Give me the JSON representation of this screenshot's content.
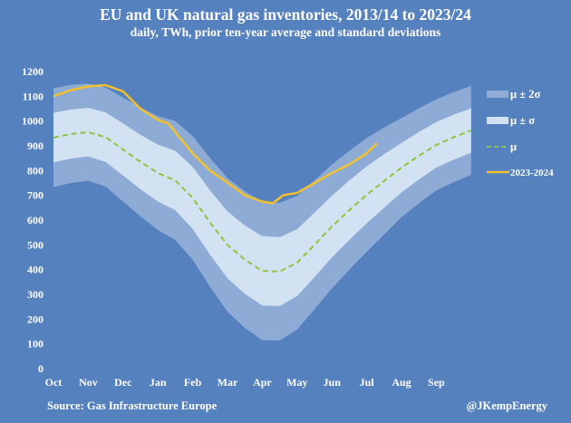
{
  "chart_data": {
    "type": "area",
    "title": "EU and UK natural gas inventories, 2013/14 to 2023/24",
    "subtitle": "daily, TWh, prior ten-year average and standard deviations",
    "xlabel": "",
    "ylabel": "",
    "ylim": [
      0,
      1200
    ],
    "yticks": [
      0,
      100,
      200,
      300,
      400,
      500,
      600,
      700,
      800,
      900,
      1000,
      1100,
      1200
    ],
    "xticks": [
      "Oct",
      "Nov",
      "Dec",
      "Jan",
      "Feb",
      "Mar",
      "Apr",
      "May",
      "Jun",
      "Jul",
      "Aug",
      "Sep"
    ],
    "grid": false,
    "legend_position": "right",
    "x_unit": "months since Oct 1",
    "avg_x": [
      0,
      0.5,
      1,
      1.5,
      2,
      2.5,
      3,
      3.5,
      4,
      4.5,
      5,
      5.5,
      6,
      6.5,
      7,
      7.5,
      8,
      8.5,
      9,
      9.5,
      10,
      10.5,
      11,
      11.5,
      12
    ],
    "mean": [
      933,
      948,
      955,
      935,
      885,
      835,
      790,
      760,
      690,
      590,
      500,
      440,
      395,
      392,
      428,
      500,
      574,
      640,
      702,
      758,
      812,
      860,
      904,
      935,
      962
    ],
    "sigma": [
      100,
      99,
      98,
      100,
      105,
      110,
      115,
      120,
      125,
      130,
      135,
      138,
      140,
      139,
      135,
      130,
      125,
      120,
      115,
      108,
      100,
      96,
      92,
      91,
      90
    ],
    "series": [
      {
        "name": "μ ± 2σ",
        "color": "#8eabd5"
      },
      {
        "name": "μ ± σ",
        "color": "#d2e2f3"
      },
      {
        "name": "μ",
        "color": "#8cc63f"
      },
      {
        "name": "2023-2024",
        "color": "#f2c12e",
        "x": [
          0,
          0.5,
          1,
          1.5,
          2,
          2.5,
          3,
          3.3,
          4,
          4.5,
          5,
          5.5,
          6,
          6.3,
          6.6,
          7,
          7.5,
          8,
          8.5,
          9,
          9.3
        ],
        "values": [
          1100,
          1125,
          1140,
          1145,
          1120,
          1050,
          1005,
          990,
          870,
          800,
          752,
          700,
          675,
          668,
          700,
          710,
          750,
          790,
          825,
          870,
          910
        ]
      }
    ]
  },
  "footer": {
    "source": "Source: Gas Infrastructure Europe",
    "credit": "@JKempEnergy"
  }
}
